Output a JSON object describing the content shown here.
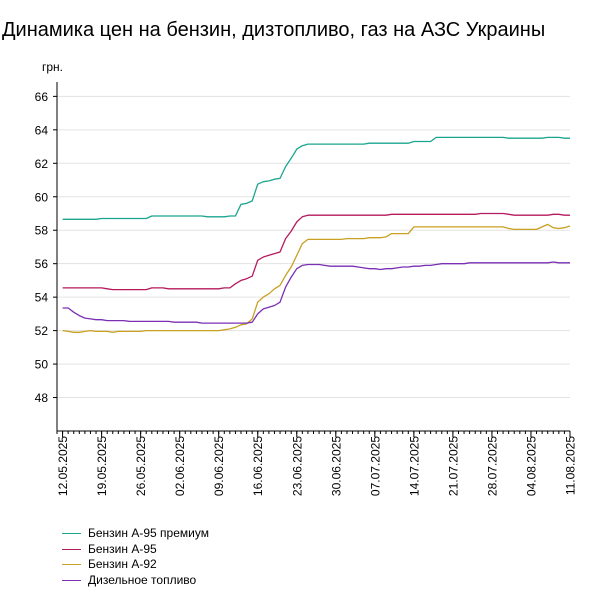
{
  "chart_data": {
    "type": "line",
    "title": "Динамика цен на бензин, дизтопливо, газ на АЗС Украины",
    "ylabel": "грн.",
    "xlabel": "",
    "ylim": [
      46,
      66.5
    ],
    "yticks": [
      48,
      50,
      52,
      54,
      56,
      58,
      60,
      62,
      64,
      66
    ],
    "xlim": [
      "2025-05-11",
      "2025-08-11"
    ],
    "xticks": [
      "12.05.2025",
      "19.05.2025",
      "26.05.2025",
      "02.06.2025",
      "09.06.2025",
      "16.06.2025",
      "23.06.2025",
      "30.06.2025",
      "07.07.2025",
      "14.07.2025",
      "21.07.2025",
      "28.07.2025",
      "04.08.2025",
      "11.08.2025"
    ],
    "grid": "horizontal",
    "legend_position": "bottom-left",
    "x": [
      "2025-05-12",
      "2025-05-13",
      "2025-05-14",
      "2025-05-15",
      "2025-05-16",
      "2025-05-17",
      "2025-05-18",
      "2025-05-19",
      "2025-05-20",
      "2025-05-21",
      "2025-05-22",
      "2025-05-23",
      "2025-05-24",
      "2025-05-25",
      "2025-05-26",
      "2025-05-27",
      "2025-05-28",
      "2025-05-29",
      "2025-05-30",
      "2025-05-31",
      "2025-06-01",
      "2025-06-02",
      "2025-06-03",
      "2025-06-04",
      "2025-06-05",
      "2025-06-06",
      "2025-06-07",
      "2025-06-08",
      "2025-06-09",
      "2025-06-10",
      "2025-06-11",
      "2025-06-12",
      "2025-06-13",
      "2025-06-14",
      "2025-06-15",
      "2025-06-16",
      "2025-06-17",
      "2025-06-18",
      "2025-06-19",
      "2025-06-20",
      "2025-06-21",
      "2025-06-22",
      "2025-06-23",
      "2025-06-24",
      "2025-06-25",
      "2025-06-26",
      "2025-06-27",
      "2025-06-28",
      "2025-06-29",
      "2025-06-30",
      "2025-07-01",
      "2025-07-02",
      "2025-07-03",
      "2025-07-04",
      "2025-07-05",
      "2025-07-06",
      "2025-07-07",
      "2025-07-08",
      "2025-07-09",
      "2025-07-10",
      "2025-07-11",
      "2025-07-12",
      "2025-07-13",
      "2025-07-14",
      "2025-07-15",
      "2025-07-16",
      "2025-07-17",
      "2025-07-18",
      "2025-07-19",
      "2025-07-20",
      "2025-07-21",
      "2025-07-22",
      "2025-07-23",
      "2025-07-24",
      "2025-07-25",
      "2025-07-26",
      "2025-07-27",
      "2025-07-28",
      "2025-07-29",
      "2025-07-30",
      "2025-07-31",
      "2025-08-01",
      "2025-08-02",
      "2025-08-03",
      "2025-08-04",
      "2025-08-05",
      "2025-08-06",
      "2025-08-07",
      "2025-08-08",
      "2025-08-09",
      "2025-08-10",
      "2025-08-11"
    ],
    "series": [
      {
        "name": "Бензин А-95 премиум",
        "color": "#1aa58f",
        "values": [
          58.65,
          58.65,
          58.65,
          58.65,
          58.65,
          58.65,
          58.65,
          58.7,
          58.7,
          58.7,
          58.7,
          58.7,
          58.7,
          58.7,
          58.7,
          58.7,
          58.85,
          58.85,
          58.85,
          58.85,
          58.85,
          58.85,
          58.85,
          58.85,
          58.85,
          58.85,
          58.8,
          58.8,
          58.8,
          58.8,
          58.85,
          58.85,
          59.55,
          59.6,
          59.75,
          60.75,
          60.9,
          60.95,
          61.05,
          61.1,
          61.8,
          62.3,
          62.85,
          63.05,
          63.15,
          63.15,
          63.15,
          63.15,
          63.15,
          63.15,
          63.15,
          63.15,
          63.15,
          63.15,
          63.15,
          63.2,
          63.2,
          63.2,
          63.2,
          63.2,
          63.2,
          63.2,
          63.2,
          63.3,
          63.3,
          63.3,
          63.3,
          63.55,
          63.55,
          63.55,
          63.55,
          63.55,
          63.55,
          63.55,
          63.55,
          63.55,
          63.55,
          63.55,
          63.55,
          63.55,
          63.5,
          63.5,
          63.5,
          63.5,
          63.5,
          63.5,
          63.5,
          63.55,
          63.55,
          63.55,
          63.5,
          63.5
        ]
      },
      {
        "name": "Бензин А-95",
        "color": "#b5195e",
        "values": [
          54.55,
          54.55,
          54.55,
          54.55,
          54.55,
          54.55,
          54.55,
          54.55,
          54.5,
          54.45,
          54.45,
          54.45,
          54.45,
          54.45,
          54.45,
          54.45,
          54.55,
          54.55,
          54.55,
          54.5,
          54.5,
          54.5,
          54.5,
          54.5,
          54.5,
          54.5,
          54.5,
          54.5,
          54.5,
          54.55,
          54.55,
          54.8,
          55.0,
          55.1,
          55.25,
          56.2,
          56.4,
          56.5,
          56.6,
          56.7,
          57.5,
          57.95,
          58.5,
          58.8,
          58.9,
          58.9,
          58.9,
          58.9,
          58.9,
          58.9,
          58.9,
          58.9,
          58.9,
          58.9,
          58.9,
          58.9,
          58.9,
          58.9,
          58.9,
          58.95,
          58.95,
          58.95,
          58.95,
          58.95,
          58.95,
          58.95,
          58.95,
          58.95,
          58.95,
          58.95,
          58.95,
          58.95,
          58.95,
          58.95,
          58.95,
          59.0,
          59.0,
          59.0,
          59.0,
          59.0,
          58.95,
          58.9,
          58.9,
          58.9,
          58.9,
          58.9,
          58.9,
          58.9,
          58.95,
          58.95,
          58.9,
          58.9
        ]
      },
      {
        "name": "Бензин А-92",
        "color": "#c8a022",
        "values": [
          52.0,
          51.95,
          51.9,
          51.9,
          51.95,
          52.0,
          51.95,
          51.95,
          51.95,
          51.9,
          51.95,
          51.95,
          51.95,
          51.95,
          51.95,
          52.0,
          52.0,
          52.0,
          52.0,
          52.0,
          52.0,
          52.0,
          52.0,
          52.0,
          52.0,
          52.0,
          52.0,
          52.0,
          52.0,
          52.05,
          52.1,
          52.2,
          52.35,
          52.4,
          52.7,
          53.7,
          54.0,
          54.2,
          54.5,
          54.7,
          55.3,
          55.8,
          56.5,
          57.2,
          57.45,
          57.45,
          57.45,
          57.45,
          57.45,
          57.45,
          57.45,
          57.5,
          57.5,
          57.5,
          57.5,
          57.55,
          57.55,
          57.55,
          57.6,
          57.8,
          57.8,
          57.8,
          57.8,
          58.2,
          58.2,
          58.2,
          58.2,
          58.2,
          58.2,
          58.2,
          58.2,
          58.2,
          58.2,
          58.2,
          58.2,
          58.2,
          58.2,
          58.2,
          58.2,
          58.2,
          58.1,
          58.05,
          58.05,
          58.05,
          58.05,
          58.05,
          58.2,
          58.35,
          58.15,
          58.1,
          58.15,
          58.25
        ]
      },
      {
        "name": "Дизельное топливо",
        "color": "#7a2fb5",
        "values": [
          53.35,
          53.35,
          53.1,
          52.9,
          52.75,
          52.7,
          52.65,
          52.65,
          52.6,
          52.6,
          52.6,
          52.6,
          52.55,
          52.55,
          52.55,
          52.55,
          52.55,
          52.55,
          52.55,
          52.55,
          52.5,
          52.5,
          52.5,
          52.5,
          52.5,
          52.45,
          52.45,
          52.45,
          52.45,
          52.45,
          52.45,
          52.45,
          52.45,
          52.45,
          52.5,
          53.0,
          53.3,
          53.4,
          53.5,
          53.7,
          54.6,
          55.2,
          55.7,
          55.9,
          55.95,
          55.95,
          55.95,
          55.9,
          55.85,
          55.85,
          55.85,
          55.85,
          55.85,
          55.8,
          55.75,
          55.7,
          55.7,
          55.65,
          55.7,
          55.7,
          55.75,
          55.8,
          55.8,
          55.85,
          55.85,
          55.9,
          55.9,
          55.95,
          56.0,
          56.0,
          56.0,
          56.0,
          56.0,
          56.05,
          56.05,
          56.05,
          56.05,
          56.05,
          56.05,
          56.05,
          56.05,
          56.05,
          56.05,
          56.05,
          56.05,
          56.05,
          56.05,
          56.05,
          56.1,
          56.05,
          56.05,
          56.05
        ]
      }
    ]
  }
}
